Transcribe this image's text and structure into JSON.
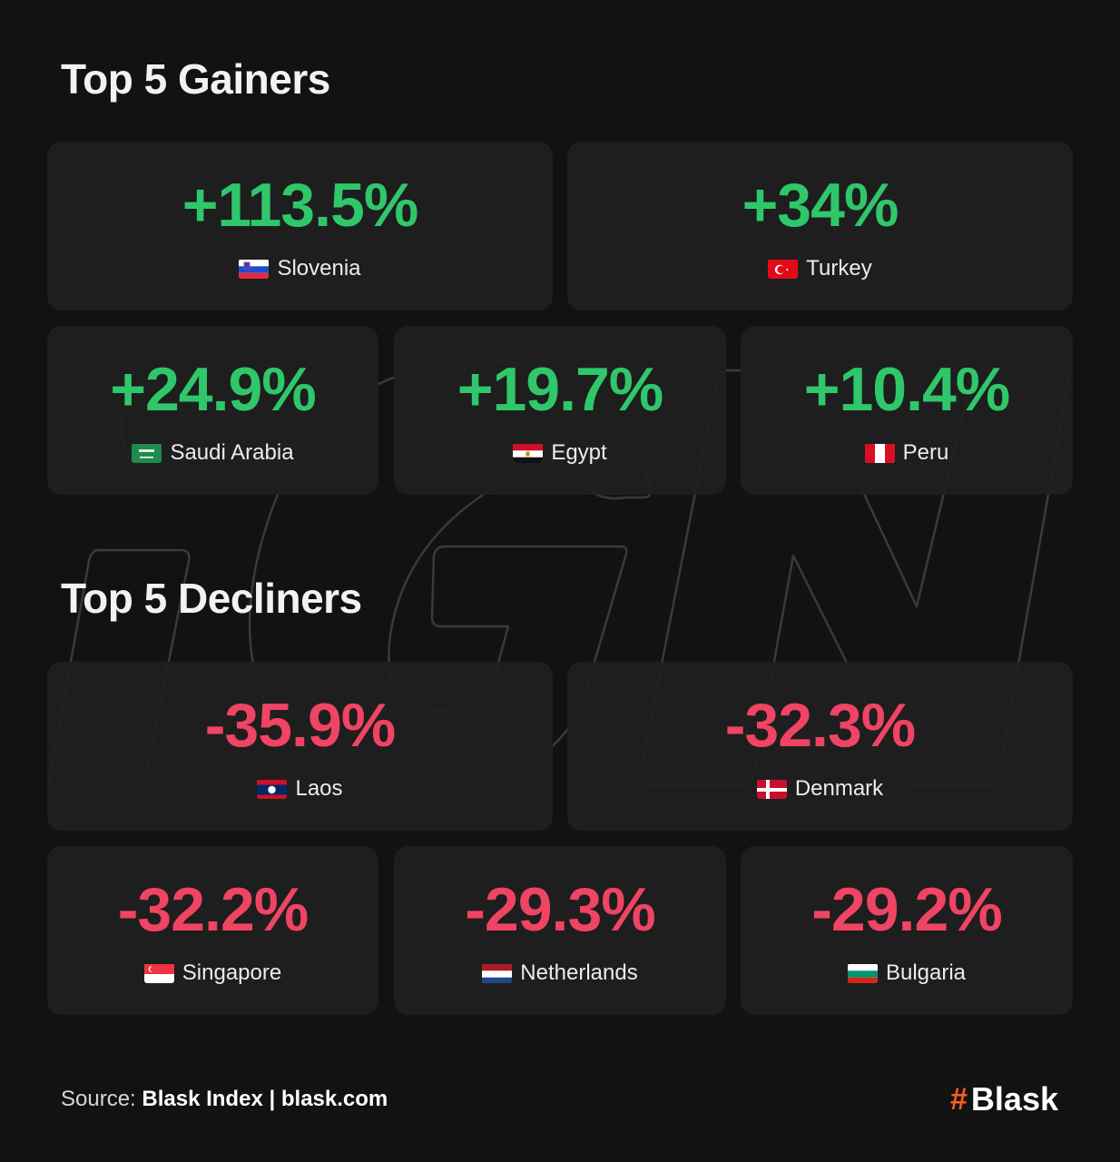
{
  "gainers": {
    "title": "Top 5 Gainers",
    "items": [
      {
        "value": "+113.5%",
        "country": "Slovenia",
        "flag": "slovenia-flag-icon"
      },
      {
        "value": "+34%",
        "country": "Turkey",
        "flag": "turkey-flag-icon"
      },
      {
        "value": "+24.9%",
        "country": "Saudi Arabia",
        "flag": "saudi-arabia-flag-icon"
      },
      {
        "value": "+19.7%",
        "country": "Egypt",
        "flag": "egypt-flag-icon"
      },
      {
        "value": "+10.4%",
        "country": "Peru",
        "flag": "peru-flag-icon"
      }
    ]
  },
  "decliners": {
    "title": "Top 5 Decliners",
    "items": [
      {
        "value": "-35.9%",
        "country": "Laos",
        "flag": "laos-flag-icon"
      },
      {
        "value": "-32.3%",
        "country": "Denmark",
        "flag": "denmark-flag-icon"
      },
      {
        "value": "-32.2%",
        "country": "Singapore",
        "flag": "singapore-flag-icon"
      },
      {
        "value": "-29.3%",
        "country": "Netherlands",
        "flag": "netherlands-flag-icon"
      },
      {
        "value": "-29.2%",
        "country": "Bulgaria",
        "flag": "bulgaria-flag-icon"
      }
    ]
  },
  "footer": {
    "source_label": "Source:",
    "source_name": "Blask Index",
    "separator": "|",
    "source_url": "blask.com",
    "brand_symbol": "#",
    "brand_name": "Blask"
  },
  "colors": {
    "background": "#121212",
    "card": "#202020",
    "gain": "#2fc76a",
    "loss": "#ef4463",
    "brand_accent": "#ff5a1f"
  }
}
